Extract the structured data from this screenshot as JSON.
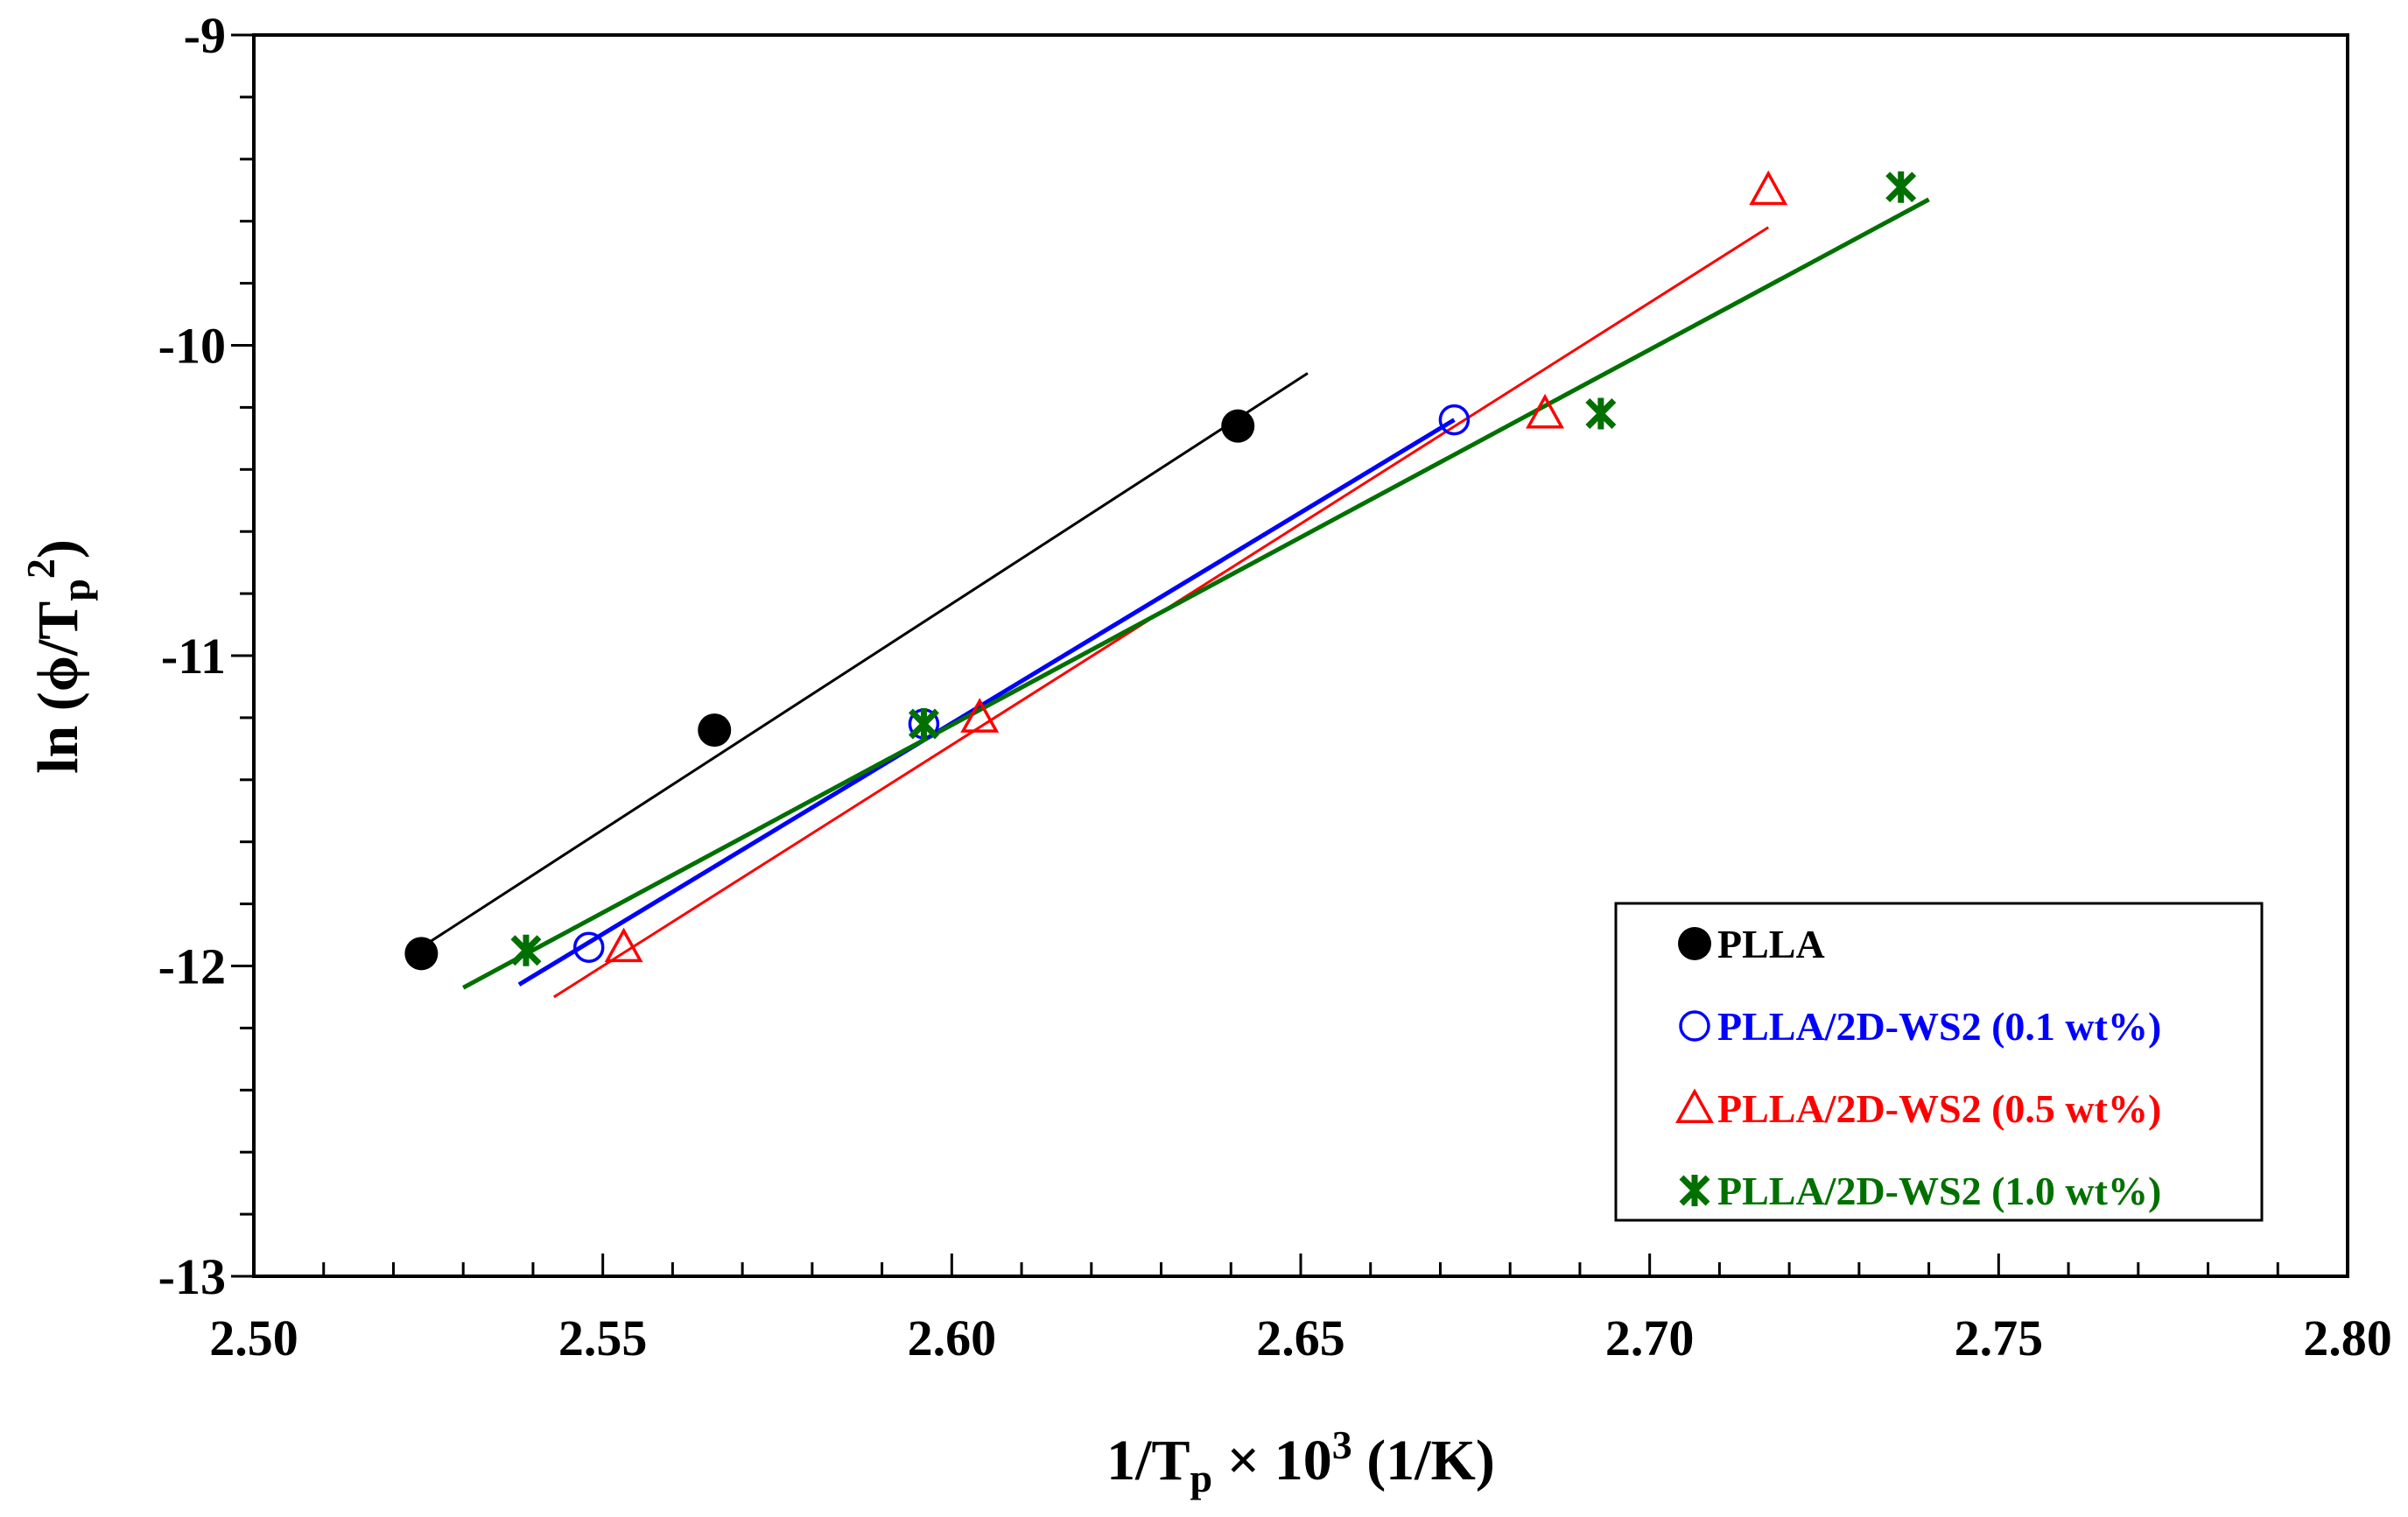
{
  "chart_data": {
    "type": "scatter",
    "xlabel": "1/T",
    "xlabel_sub": "p",
    "xlabel_rest": " × 10",
    "xlabel_sup": "3",
    "xlabel_unit": " (1/K)",
    "ylabel": "ln (ϕ/T",
    "ylabel_sub": "p",
    "ylabel_sup": "2",
    "ylabel_close": ")",
    "xlim": [
      2.5,
      2.8
    ],
    "ylim": [
      -13,
      -9
    ],
    "x_ticks": [
      "2.50",
      "2.55",
      "2.60",
      "2.65",
      "2.70",
      "2.75",
      "2.80"
    ],
    "y_ticks": [
      "-9",
      "-10",
      "-11",
      "-12",
      "-13"
    ],
    "legend_position": "bottom-right",
    "series": [
      {
        "name": "PLLA",
        "color": "#000000",
        "marker": "filled-circle",
        "x": [
          2.524,
          2.566,
          2.641
        ],
        "y": [
          -11.96,
          -11.24,
          -10.26
        ],
        "fit_x": [
          2.524,
          2.651
        ],
        "fit_y": [
          -11.94,
          -10.09
        ]
      },
      {
        "name": "PLLA/2D-WS2 (0.1 wt%)",
        "color": "#0000ff",
        "marker": "open-circle",
        "x": [
          2.548,
          2.596,
          2.672
        ],
        "y": [
          -11.94,
          -11.22,
          -10.24
        ],
        "fit_x": [
          2.538,
          2.672
        ],
        "fit_y": [
          -12.06,
          -10.24
        ]
      },
      {
        "name": "PLLA/2D-WS2 (0.5 wt%)",
        "color": "#ff0000",
        "marker": "open-triangle",
        "x": [
          2.553,
          2.604,
          2.685,
          2.717
        ],
        "y": [
          -11.94,
          -11.2,
          -10.22,
          -9.5
        ],
        "fit_x": [
          2.543,
          2.717
        ],
        "fit_y": [
          -12.1,
          -9.62
        ]
      },
      {
        "name": "PLLA/2D-WS2 (1.0 wt%)",
        "color": "#007000",
        "marker": "star",
        "x": [
          2.539,
          2.596,
          2.693,
          2.736
        ],
        "y": [
          -11.95,
          -11.22,
          -10.22,
          -9.49
        ],
        "fit_x": [
          2.53,
          2.74
        ],
        "fit_y": [
          -12.07,
          -9.53
        ]
      }
    ]
  }
}
